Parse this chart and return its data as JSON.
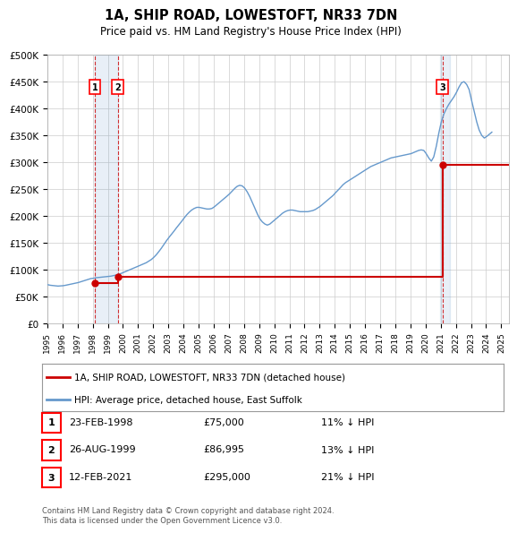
{
  "title": "1A, SHIP ROAD, LOWESTOFT, NR33 7DN",
  "subtitle": "Price paid vs. HM Land Registry's House Price Index (HPI)",
  "ylabel": "",
  "ylim": [
    0,
    500000
  ],
  "yticks": [
    0,
    50000,
    100000,
    150000,
    200000,
    250000,
    300000,
    350000,
    400000,
    450000,
    500000
  ],
  "xlim_start": 1995.0,
  "xlim_end": 2025.5,
  "hpi_color": "#6699cc",
  "price_color": "#cc0000",
  "vline_color": "#cc0000",
  "vline_style": "dashed",
  "background_color": "#ffffff",
  "grid_color": "#cccccc",
  "sale_dates": [
    1998.14,
    1999.65,
    2021.12
  ],
  "sale_prices": [
    75000,
    86995,
    295000
  ],
  "sale_labels": [
    "1",
    "2",
    "3"
  ],
  "legend_label_price": "1A, SHIP ROAD, LOWESTOFT, NR33 7DN (detached house)",
  "legend_label_hpi": "HPI: Average price, detached house, East Suffolk",
  "table_rows": [
    {
      "num": "1",
      "date": "23-FEB-1998",
      "price": "£75,000",
      "hpi": "11% ↓ HPI"
    },
    {
      "num": "2",
      "date": "26-AUG-1999",
      "price": "£86,995",
      "hpi": "13% ↓ HPI"
    },
    {
      "num": "3",
      "date": "12-FEB-2021",
      "price": "£295,000",
      "hpi": "21% ↓ HPI"
    }
  ],
  "footnote": "Contains HM Land Registry data © Crown copyright and database right 2024.\nThis data is licensed under the Open Government Licence v3.0.",
  "hpi_data": {
    "years": [
      1995.04,
      1995.21,
      1995.38,
      1995.54,
      1995.71,
      1995.88,
      1996.04,
      1996.21,
      1996.38,
      1996.54,
      1996.71,
      1996.88,
      1997.04,
      1997.21,
      1997.38,
      1997.54,
      1997.71,
      1997.88,
      1998.04,
      1998.21,
      1998.38,
      1998.54,
      1998.71,
      1998.88,
      1999.04,
      1999.21,
      1999.38,
      1999.54,
      1999.71,
      1999.88,
      2000.04,
      2000.21,
      2000.38,
      2000.54,
      2000.71,
      2000.88,
      2001.04,
      2001.21,
      2001.38,
      2001.54,
      2001.71,
      2001.88,
      2002.04,
      2002.21,
      2002.38,
      2002.54,
      2002.71,
      2002.88,
      2003.04,
      2003.21,
      2003.38,
      2003.54,
      2003.71,
      2003.88,
      2004.04,
      2004.21,
      2004.38,
      2004.54,
      2004.71,
      2004.88,
      2005.04,
      2005.21,
      2005.38,
      2005.54,
      2005.71,
      2005.88,
      2006.04,
      2006.21,
      2006.38,
      2006.54,
      2006.71,
      2006.88,
      2007.04,
      2007.21,
      2007.38,
      2007.54,
      2007.71,
      2007.88,
      2008.04,
      2008.21,
      2008.38,
      2008.54,
      2008.71,
      2008.88,
      2009.04,
      2009.21,
      2009.38,
      2009.54,
      2009.71,
      2009.88,
      2010.04,
      2010.21,
      2010.38,
      2010.54,
      2010.71,
      2010.88,
      2011.04,
      2011.21,
      2011.38,
      2011.54,
      2011.71,
      2011.88,
      2012.04,
      2012.21,
      2012.38,
      2012.54,
      2012.71,
      2012.88,
      2013.04,
      2013.21,
      2013.38,
      2013.54,
      2013.71,
      2013.88,
      2014.04,
      2014.21,
      2014.38,
      2014.54,
      2014.71,
      2014.88,
      2015.04,
      2015.21,
      2015.38,
      2015.54,
      2015.71,
      2015.88,
      2016.04,
      2016.21,
      2016.38,
      2016.54,
      2016.71,
      2016.88,
      2017.04,
      2017.21,
      2017.38,
      2017.54,
      2017.71,
      2017.88,
      2018.04,
      2018.21,
      2018.38,
      2018.54,
      2018.71,
      2018.88,
      2019.04,
      2019.21,
      2019.38,
      2019.54,
      2019.71,
      2019.88,
      2020.04,
      2020.21,
      2020.38,
      2020.54,
      2020.71,
      2020.88,
      2021.04,
      2021.21,
      2021.38,
      2021.54,
      2021.71,
      2021.88,
      2022.04,
      2022.21,
      2022.38,
      2022.54,
      2022.71,
      2022.88,
      2023.04,
      2023.21,
      2023.38,
      2023.54,
      2023.71,
      2023.88,
      2024.04,
      2024.21,
      2024.38
    ],
    "values": [
      72000,
      71000,
      70500,
      70000,
      69500,
      69800,
      70200,
      71000,
      72000,
      73000,
      74000,
      75000,
      76000,
      77500,
      79000,
      80500,
      82000,
      83500,
      84000,
      85000,
      85500,
      86000,
      86500,
      87000,
      87500,
      88000,
      89000,
      90000,
      91500,
      93000,
      95000,
      97000,
      99000,
      101000,
      103000,
      105000,
      107000,
      109000,
      111000,
      113000,
      116000,
      119000,
      123000,
      128000,
      134000,
      140000,
      147000,
      154000,
      160000,
      166000,
      172000,
      178000,
      184000,
      190000,
      196000,
      202000,
      207000,
      211000,
      214000,
      216000,
      216000,
      215000,
      214000,
      213000,
      213000,
      214000,
      217000,
      221000,
      225000,
      229000,
      233000,
      237000,
      241000,
      246000,
      251000,
      255000,
      257000,
      256000,
      252000,
      245000,
      236000,
      226000,
      215000,
      204000,
      195000,
      189000,
      185000,
      183000,
      185000,
      189000,
      193000,
      197000,
      201000,
      205000,
      208000,
      210000,
      211000,
      211000,
      210000,
      209000,
      208000,
      208000,
      208000,
      208000,
      209000,
      210000,
      212000,
      215000,
      218000,
      222000,
      226000,
      230000,
      234000,
      238000,
      243000,
      248000,
      253000,
      258000,
      262000,
      265000,
      268000,
      271000,
      274000,
      277000,
      280000,
      283000,
      286000,
      289000,
      292000,
      294000,
      296000,
      298000,
      300000,
      302000,
      304000,
      306000,
      308000,
      309000,
      310000,
      311000,
      312000,
      313000,
      314000,
      315000,
      316000,
      318000,
      320000,
      322000,
      323000,
      322000,
      316000,
      308000,
      302000,
      310000,
      330000,
      355000,
      375000,
      390000,
      400000,
      408000,
      415000,
      422000,
      430000,
      440000,
      448000,
      450000,
      445000,
      435000,
      415000,
      395000,
      375000,
      360000,
      350000,
      345000,
      348000,
      352000,
      356000
    ]
  },
  "price_data": {
    "years": [
      1998.14,
      1999.65,
      2021.12
    ],
    "values": [
      75000,
      86995,
      295000
    ]
  }
}
